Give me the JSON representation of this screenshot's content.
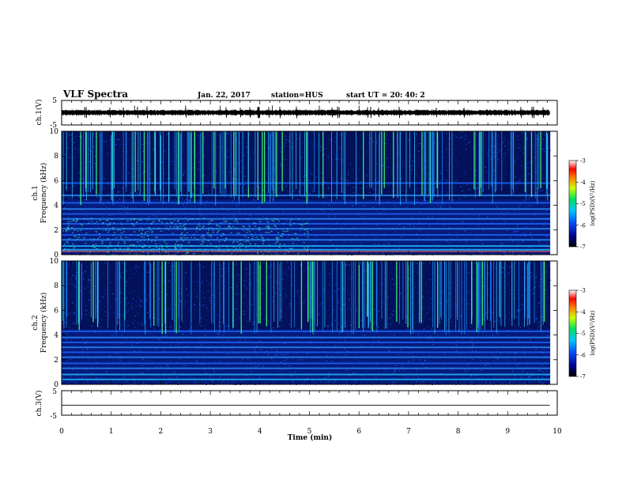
{
  "header": {
    "title": "VLF Spectra",
    "date": "Jan. 22, 2017",
    "station": "station=HUS",
    "start": "start  UT =   20: 40: 2"
  },
  "chart_data": [
    {
      "type": "line",
      "panel": "ch1-waveform",
      "ylabel": "ch.1(V)",
      "ylim": [
        -5,
        5
      ],
      "y_ticks": [
        "5",
        "-5"
      ],
      "xlim": [
        0,
        10
      ],
      "x_data_end": 9.85,
      "baseline": 0,
      "description_of_trace": "noisy waveform near 0 V"
    },
    {
      "type": "heatmap",
      "panel": "ch1-spectrogram",
      "ylabel": "ch.1\nFrequency (kHz)",
      "ylim": [
        0,
        10
      ],
      "y_ticks": [
        "10",
        "8",
        "6",
        "4",
        "2",
        "0"
      ],
      "xlim": [
        0,
        10
      ],
      "x_data_end": 9.85,
      "colorbar": {
        "label": "log(PSD)(V²/Hz)",
        "range": [
          -7,
          -3
        ],
        "ticks": [
          "-3",
          "-4",
          "-5",
          "-6",
          "-7"
        ]
      },
      "bands_khz": [
        0.4,
        0.7,
        1.2,
        1.6,
        2.1,
        2.5,
        2.9,
        3.3,
        3.7,
        4.2,
        4.8,
        5.8
      ]
    },
    {
      "type": "heatmap",
      "panel": "ch2-spectrogram",
      "ylabel": "ch.2\nFrequency (kHz)",
      "ylim": [
        0,
        10
      ],
      "y_ticks": [
        "10",
        "8",
        "6",
        "4",
        "2",
        "0"
      ],
      "xlim": [
        0,
        10
      ],
      "x_data_end": 9.85,
      "colorbar": {
        "label": "log(PSD)(V²/Hz)",
        "range": [
          -7,
          -3
        ],
        "ticks": [
          "-3",
          "-4",
          "-5",
          "-6",
          "-7"
        ]
      },
      "bands_khz": [
        0.4,
        0.8,
        1.3,
        1.7,
        2.2,
        2.6,
        3.0,
        3.4,
        3.8,
        4.3
      ]
    },
    {
      "type": "line",
      "panel": "ch3-waveform",
      "ylabel": "ch.3(V)",
      "ylim": [
        -5,
        5
      ],
      "y_ticks": [
        "5",
        "-5"
      ],
      "xlim": [
        0,
        10
      ],
      "x_data_end": 9.85,
      "values_constant": -0.9
    }
  ],
  "x_axis": {
    "label": "Time (min)",
    "ticks": [
      "0",
      "1",
      "2",
      "3",
      "4",
      "5",
      "6",
      "7",
      "8",
      "9",
      "10"
    ]
  }
}
